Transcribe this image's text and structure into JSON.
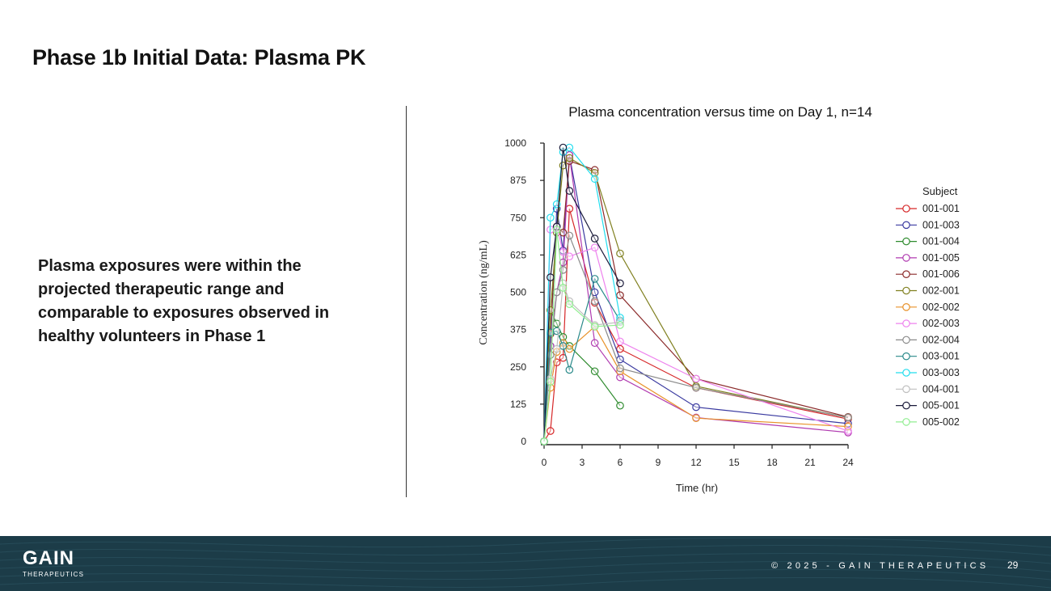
{
  "slide": {
    "title": "Phase 1b Initial Data: Plasma PK",
    "body_text": "Plasma exposures were within the projected therapeutic range and comparable to exposures observed in healthy volunteers in Phase 1"
  },
  "footer": {
    "logo_main": "GAIN",
    "logo_sub": "THERAPEUTICS",
    "copyright": "© 2025 - GAIN THERAPEUTICS",
    "page_number": "29",
    "background_color": "#1c3c48"
  },
  "chart_data": {
    "type": "line",
    "title": "Plasma concentration versus time on Day 1, n=14",
    "xlabel": "Time (hr)",
    "ylabel": "Concentration (ng/mL)",
    "xlim": [
      0,
      24
    ],
    "ylim": [
      0,
      1000
    ],
    "xticks": [
      0,
      3,
      6,
      9,
      12,
      15,
      18,
      21,
      24
    ],
    "yticks": [
      0,
      125,
      250,
      375,
      500,
      625,
      750,
      875,
      1000
    ],
    "grid": false,
    "marker": "open-circle",
    "legend": {
      "title": "Subject",
      "position": "right"
    },
    "series": [
      {
        "name": "001-001",
        "color": "#d62728",
        "x": [
          0,
          0.5,
          1,
          1.5,
          2,
          4,
          6,
          12,
          24
        ],
        "y": [
          0,
          35,
          265,
          280,
          780,
          465,
          310,
          180,
          75
        ]
      },
      {
        "name": "001-003",
        "color": "#3a3aa0",
        "x": [
          0,
          0.5,
          1,
          1.5,
          2,
          4,
          6,
          12,
          24
        ],
        "y": [
          0,
          320,
          780,
          640,
          960,
          500,
          275,
          115,
          60
        ]
      },
      {
        "name": "001-004",
        "color": "#2e8b2e",
        "x": [
          0,
          0.5,
          1,
          1.5,
          2,
          4,
          6
        ],
        "y": [
          0,
          440,
          395,
          350,
          320,
          235,
          120
        ]
      },
      {
        "name": "001-005",
        "color": "#b03ab0",
        "x": [
          0,
          0.5,
          1,
          1.5,
          2,
          4,
          6,
          12,
          24
        ],
        "y": [
          0,
          320,
          500,
          600,
          960,
          330,
          215,
          80,
          30
        ]
      },
      {
        "name": "001-006",
        "color": "#8b2a2a",
        "x": [
          0,
          0.5,
          1,
          1.5,
          2,
          4,
          6,
          12,
          24
        ],
        "y": [
          0,
          360,
          720,
          700,
          940,
          910,
          490,
          210,
          82
        ]
      },
      {
        "name": "002-001",
        "color": "#808020",
        "x": [
          0,
          0.5,
          1,
          1.5,
          2,
          4,
          6,
          12,
          24
        ],
        "y": [
          0,
          440,
          700,
          925,
          950,
          900,
          630,
          185,
          80
        ]
      },
      {
        "name": "002-002",
        "color": "#e8922a",
        "x": [
          0,
          0.5,
          1,
          1.5,
          2,
          4,
          6,
          12,
          24
        ],
        "y": [
          0,
          180,
          300,
          330,
          310,
          385,
          235,
          78,
          50
        ]
      },
      {
        "name": "002-003",
        "color": "#ee82ee",
        "x": [
          0,
          0.5,
          1,
          1.5,
          2,
          4,
          6,
          12,
          24
        ],
        "y": [
          0,
          710,
          720,
          635,
          620,
          650,
          335,
          210,
          35
        ]
      },
      {
        "name": "002-004",
        "color": "#8a8a8a",
        "x": [
          0,
          0.5,
          1,
          1.5,
          2,
          4,
          6,
          12,
          24
        ],
        "y": [
          0,
          290,
          500,
          575,
          690,
          470,
          245,
          180,
          80
        ]
      },
      {
        "name": "003-001",
        "color": "#2a8a8a",
        "x": [
          0,
          0.5,
          1,
          1.5,
          2,
          4,
          6
        ],
        "y": [
          0,
          365,
          370,
          320,
          240,
          545,
          405
        ]
      },
      {
        "name": "003-003",
        "color": "#22ddee",
        "x": [
          0,
          0.5,
          1,
          1.5,
          2,
          4,
          6
        ],
        "y": [
          0,
          750,
          795,
          970,
          985,
          880,
          415
        ]
      },
      {
        "name": "004-001",
        "color": "#c0c0c0",
        "x": [
          0,
          0.5,
          1,
          1.5,
          2,
          4,
          6
        ],
        "y": [
          0,
          210,
          310,
          530,
          470,
          390,
          400
        ]
      },
      {
        "name": "005-001",
        "color": "#1a1a3a",
        "x": [
          0,
          0.5,
          1,
          1.5,
          2,
          4,
          6
        ],
        "y": [
          0,
          550,
          720,
          985,
          840,
          680,
          530
        ]
      },
      {
        "name": "005-002",
        "color": "#90ee90",
        "x": [
          0,
          0.5,
          1,
          1.5,
          2,
          4,
          6
        ],
        "y": [
          0,
          200,
          710,
          515,
          460,
          385,
          390
        ]
      }
    ]
  }
}
